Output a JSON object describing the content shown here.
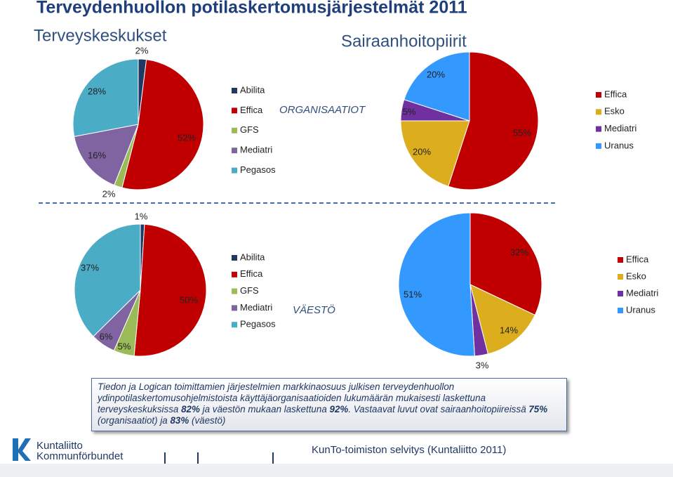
{
  "header": {
    "title": "Terveydenhuollon potilaskertomusjärjestelmät 2011",
    "sections": [
      "Terveyskeskukset",
      "Sairaanhoitopiirit"
    ],
    "row_labels": [
      "ORGANISAATIOT",
      "VÄESTÖ"
    ]
  },
  "chart_data": [
    {
      "type": "pie",
      "categories": [
        "Abilita",
        "Effica",
        "GFS",
        "Mediatri",
        "Pegasos"
      ],
      "values": [
        2,
        52,
        2,
        16,
        28
      ],
      "value_labels": [
        "2%",
        "52%",
        "2%",
        "16%",
        "28%"
      ],
      "colors": [
        "#1f3864",
        "#c00000",
        "#9bbb59",
        "#8064a2",
        "#4bacc6"
      ]
    },
    {
      "type": "pie",
      "categories": [
        "Effica",
        "Esko",
        "Mediatri",
        "Uranus"
      ],
      "values": [
        55,
        20,
        5,
        20
      ],
      "value_labels": [
        "55%",
        "20%",
        "5%",
        "20%"
      ],
      "colors": [
        "#c00000",
        "#dcae1d",
        "#7030a0",
        "#3399ff"
      ]
    },
    {
      "type": "pie",
      "categories": [
        "Abilita",
        "Effica",
        "GFS",
        "Mediatri",
        "Pegasos"
      ],
      "values": [
        1,
        50,
        5,
        6,
        37
      ],
      "value_labels": [
        "1%",
        "50%",
        "5%",
        "6%",
        "37%"
      ],
      "colors": [
        "#1f3864",
        "#c00000",
        "#9bbb59",
        "#8064a2",
        "#4bacc6"
      ]
    },
    {
      "type": "pie",
      "categories": [
        "Effica",
        "Esko",
        "Mediatri",
        "Uranus"
      ],
      "values": [
        32,
        14,
        3,
        51
      ],
      "value_labels": [
        "32%",
        "14%",
        "3%",
        "51%"
      ],
      "colors": [
        "#c00000",
        "#dcae1d",
        "#7030a0",
        "#3399ff"
      ]
    }
  ],
  "note": [
    "Tiedon ja Logican toimittamien järjestelmien markkinaosuus julkisen terveydenhuollon ydinpotilaskertomusohjelmistoista käyttäjäorganisaatioiden lukumäärän mukaisesti laskettuna terveyskeskuksissa ",
    "82%",
    " ja väestön mukaan laskettuna ",
    "92%",
    ". Vastaavat luvut ovat sairaanhoitopiireissä ",
    "75%",
    " (organisaatiot) ja ",
    "83%",
    " (väestö)"
  ],
  "footer": {
    "source": "KunTo-toimiston selvitys (Kuntaliitto 2011)",
    "logo": [
      "Kuntaliitto",
      "Kommunförbundet"
    ]
  }
}
